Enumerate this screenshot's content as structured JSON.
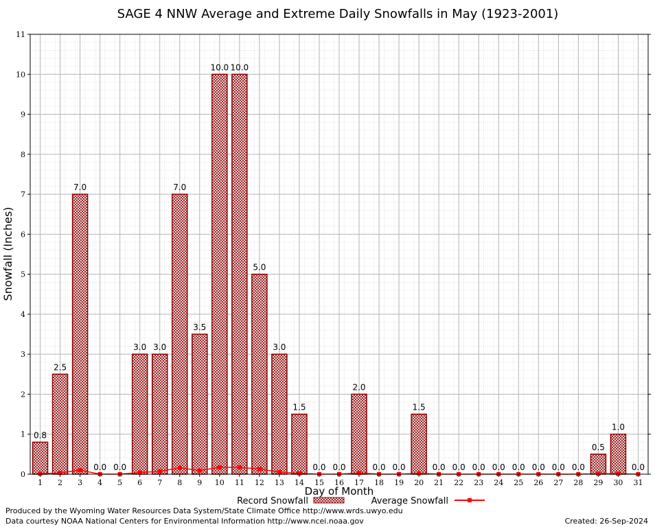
{
  "chart_data": {
    "type": "bar",
    "title": "SAGE 4 NNW Average and Extreme Daily Snowfalls in May (1923-2001)",
    "xlabel": "Day of Month",
    "ylabel": "Snowfall (Inches)",
    "ylim": [
      0,
      11
    ],
    "yticks": [
      0,
      1,
      2,
      3,
      4,
      5,
      6,
      7,
      8,
      9,
      10,
      11
    ],
    "grid": true,
    "legend_position": "bottom-center",
    "categories": [
      "1",
      "2",
      "3",
      "4",
      "5",
      "6",
      "7",
      "8",
      "9",
      "10",
      "11",
      "12",
      "13",
      "14",
      "15",
      "16",
      "17",
      "18",
      "19",
      "20",
      "21",
      "22",
      "23",
      "24",
      "25",
      "26",
      "27",
      "28",
      "29",
      "30",
      "31"
    ],
    "series": [
      {
        "name": "Record Snowfall",
        "kind": "bar",
        "color": "#8b0000",
        "values": [
          0.8,
          2.5,
          7.0,
          0.0,
          0.0,
          3.0,
          3.0,
          7.0,
          3.5,
          10.0,
          10.0,
          5.0,
          3.0,
          1.5,
          0.0,
          0.0,
          2.0,
          0.0,
          0.0,
          1.5,
          0.0,
          0.0,
          0.0,
          0.0,
          0.0,
          0.0,
          0.0,
          0.0,
          0.5,
          1.0,
          0.0
        ],
        "labels": [
          "0.8",
          "2.5",
          "7.0",
          "0.0",
          "0.0",
          "3.0",
          "3.0",
          "7.0",
          "3.5",
          "10.0",
          "10.0",
          "5.0",
          "3.0",
          "1.5",
          "0.0",
          "0.0",
          "2.0",
          "0.0",
          "0.0",
          "1.5",
          "0.0",
          "0.0",
          "0.0",
          "0.0",
          "0.0",
          "0.0",
          "0.0",
          "0.0",
          "0.5",
          "1.0",
          "0.0"
        ]
      },
      {
        "name": "Average Snowfall",
        "kind": "line",
        "color": "#ff0000",
        "values": [
          0.01,
          0.03,
          0.1,
          0.0,
          0.0,
          0.04,
          0.07,
          0.16,
          0.09,
          0.17,
          0.17,
          0.13,
          0.05,
          0.02,
          0.0,
          0.0,
          0.03,
          0.0,
          0.0,
          0.02,
          0.0,
          0.0,
          0.0,
          0.0,
          0.0,
          0.0,
          0.0,
          0.0,
          0.01,
          0.01,
          0.0
        ]
      }
    ]
  },
  "footer": {
    "producer": "Produced by the Wyoming Water Resources Data System/State Climate Office http://www.wrds.uwyo.edu",
    "source": "Data courtesy NOAA National Centers for Environmental Information http://www.ncei.noaa.gov",
    "created": "Created:  26-Sep-2024"
  }
}
